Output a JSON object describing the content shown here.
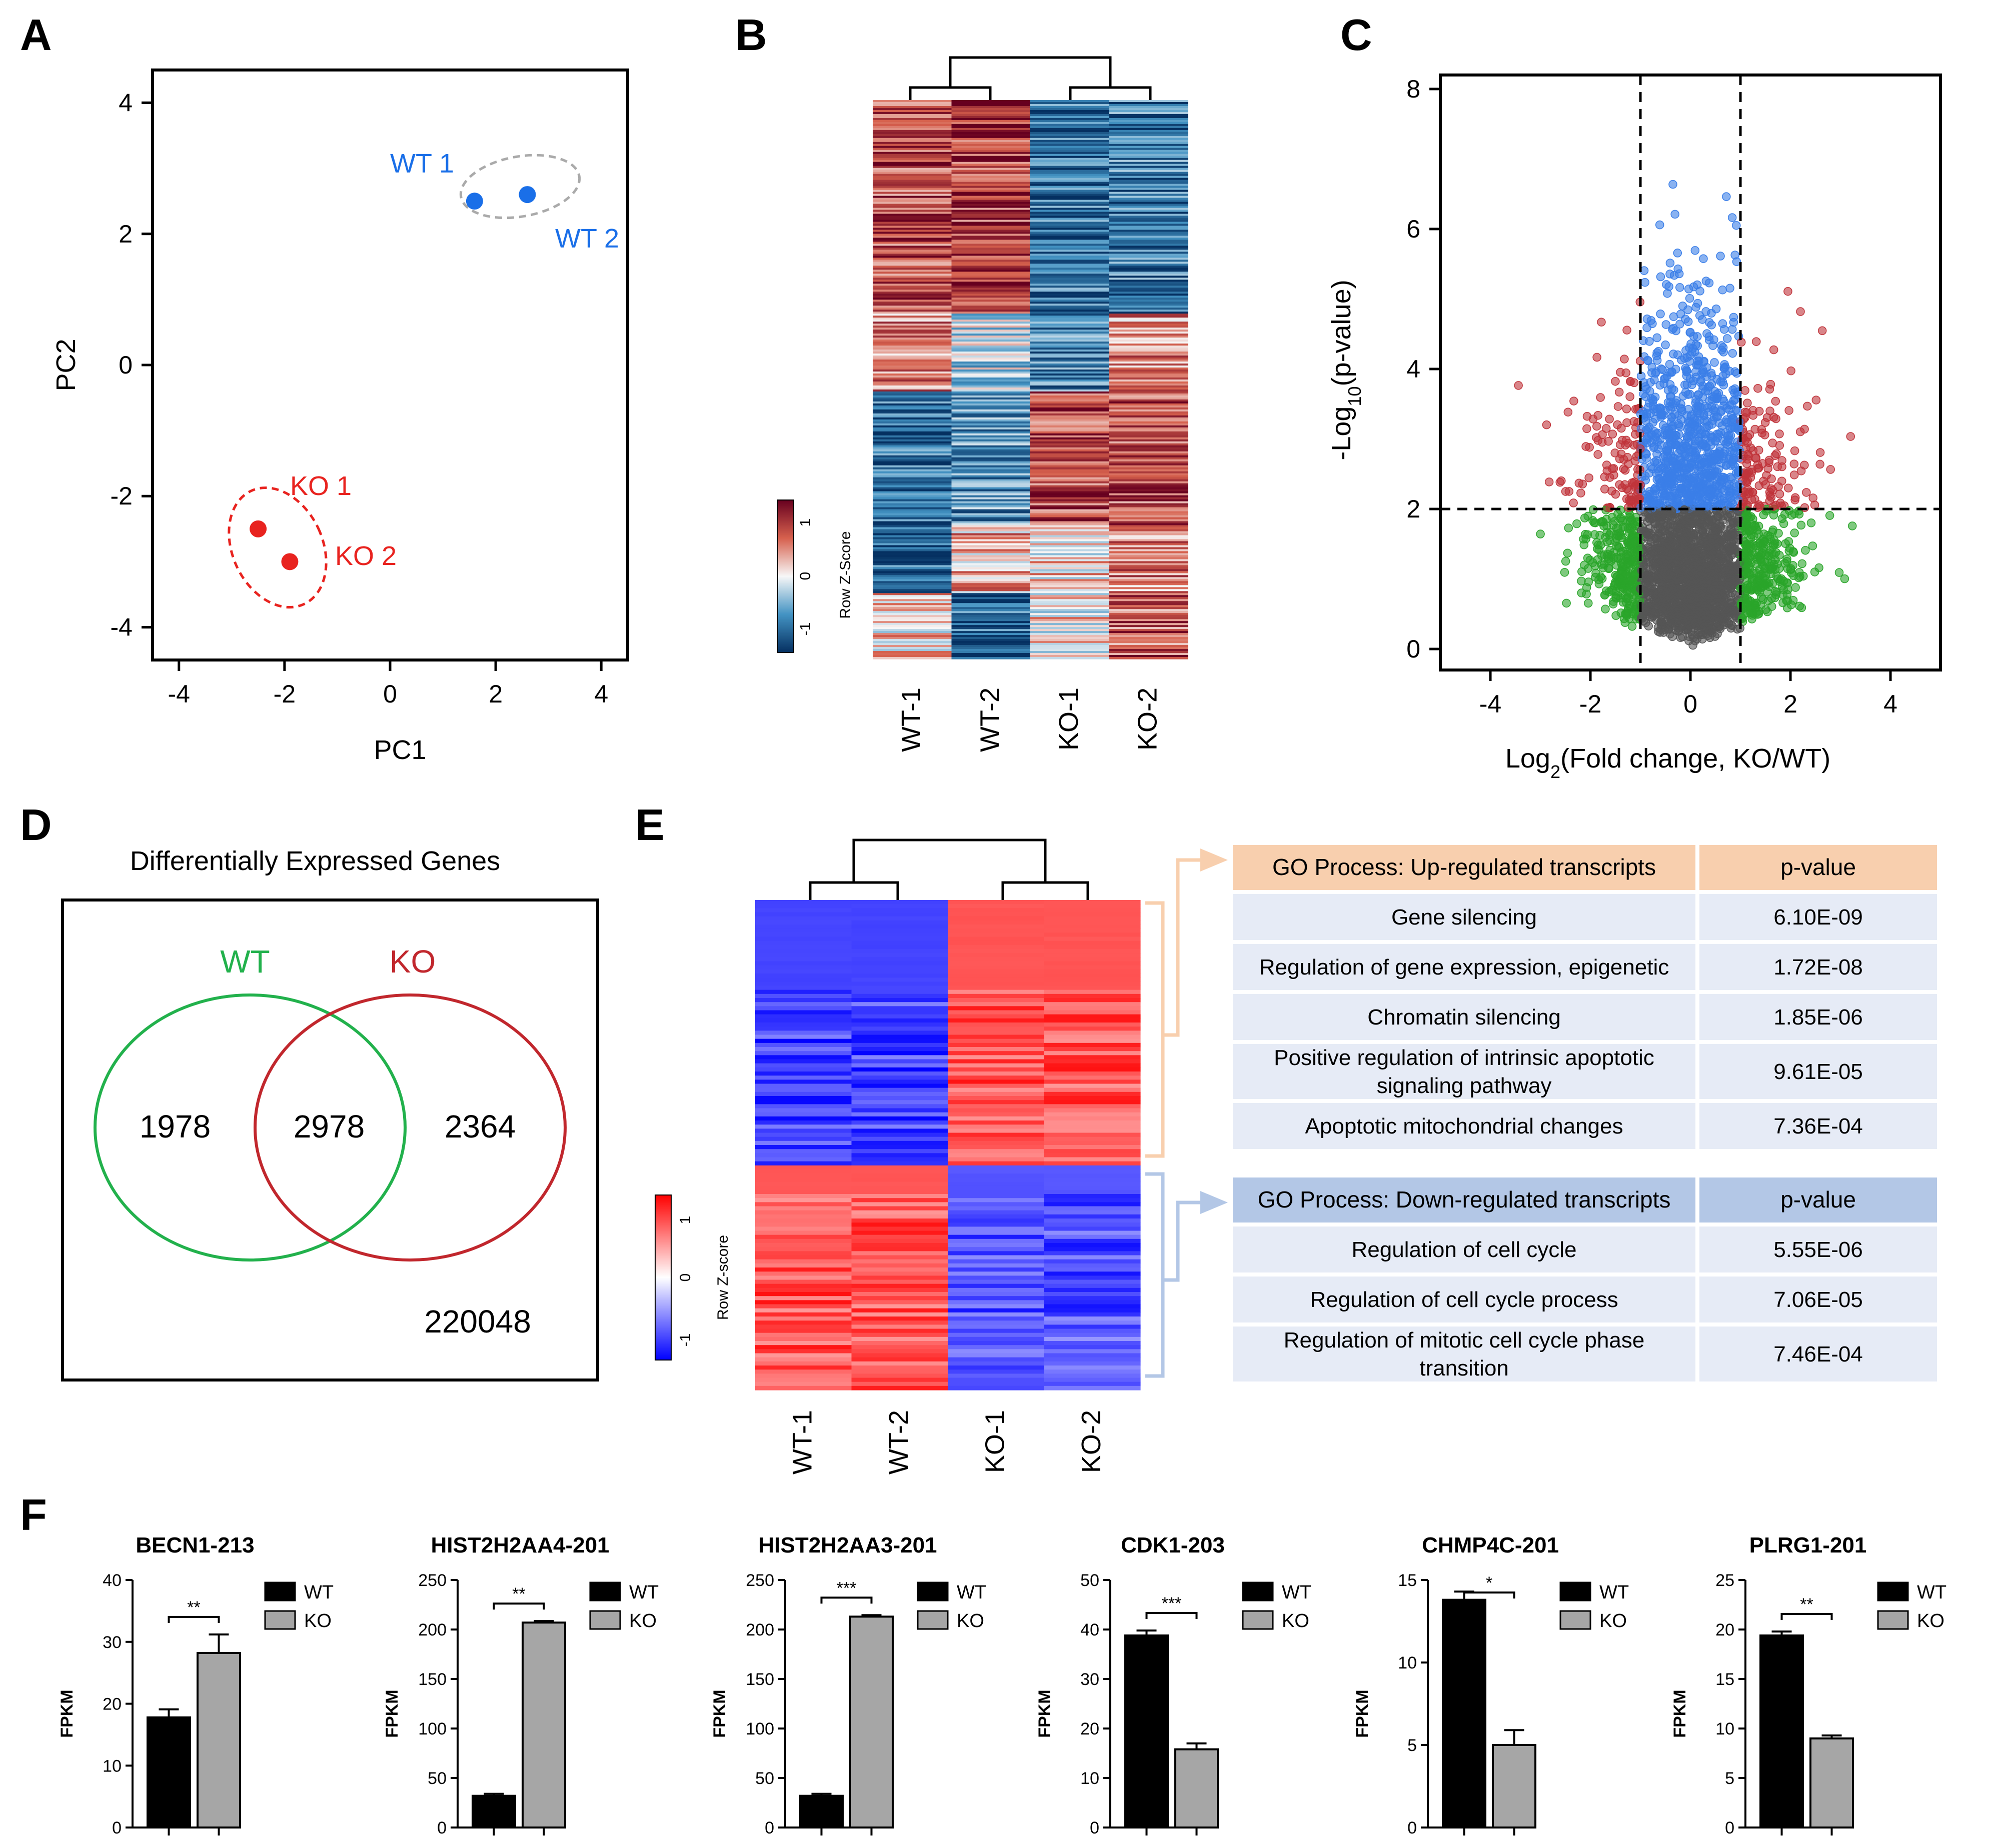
{
  "panels": {
    "A": {
      "letter": "A"
    },
    "B": {
      "letter": "B"
    },
    "C": {
      "letter": "C"
    },
    "D": {
      "letter": "D"
    },
    "E": {
      "letter": "E"
    },
    "F": {
      "letter": "F"
    }
  },
  "colors": {
    "wt_blue": "#1a6fe8",
    "ko_red": "#e8231f",
    "venn_green": "#22b14c",
    "venn_red": "#c1272d",
    "volcano_red": "#c0343b",
    "volcano_blue": "#3a7ee8",
    "volcano_green": "#2aa52a",
    "volcano_gray": "#555555",
    "go_up_header": "#f8cfae",
    "go_down_header": "#b3c7e6",
    "go_row": "#e6ebf6"
  },
  "chart_data": [
    {
      "id": "A",
      "type": "scatter",
      "title": "",
      "xlabel": "PC1",
      "ylabel": "PC2",
      "xlim": [
        -4.5,
        4.5
      ],
      "ylim": [
        -4.5,
        4.5
      ],
      "xticks": [
        "-4",
        "-2",
        "0",
        "2",
        "4"
      ],
      "yticks": [
        "4",
        "2",
        "0",
        "-2",
        "-4"
      ],
      "series": [
        {
          "name": "WT",
          "points": [
            [
              1.6,
              2.5
            ],
            [
              2.6,
              2.6
            ]
          ],
          "labels": [
            "WT 1",
            "WT 2"
          ]
        },
        {
          "name": "KO",
          "points": [
            [
              -2.5,
              -2.5
            ],
            [
              -1.9,
              -3.0
            ]
          ],
          "labels": [
            "KO 1",
            "KO 2"
          ]
        }
      ]
    },
    {
      "id": "B",
      "type": "heatmap",
      "columns": [
        "WT-1",
        "WT-2",
        "KO-1",
        "KO-2"
      ],
      "legend_title": "Row Z-Score",
      "legend_ticks": [
        "1",
        "0",
        "-1"
      ]
    },
    {
      "id": "C",
      "type": "scatter",
      "subtype": "volcano",
      "xlabel_main": "Log",
      "xlabel_sub": "2",
      "xlabel_rest": "(Fold change, KO/WT)",
      "ylabel_pre": "-Log",
      "ylabel_sub": "10",
      "ylabel_rest": "(p-value)",
      "xlim": [
        -5,
        5
      ],
      "ylim": [
        -0.3,
        8.2
      ],
      "xticks": [
        "-4",
        "-2",
        "0",
        "2",
        "4"
      ],
      "yticks": [
        "8",
        "6",
        "4",
        "2",
        "0"
      ],
      "thresholds": {
        "log2fc": 1,
        "neg_log10_p": 2
      }
    },
    {
      "id": "D",
      "type": "venn",
      "title": "Differentially Expressed Genes",
      "sets": [
        {
          "name": "WT",
          "only": "1978"
        },
        {
          "name": "KO",
          "only": "2364"
        }
      ],
      "intersection": "2978",
      "outside": "220048"
    },
    {
      "id": "E",
      "type": "heatmap",
      "columns": [
        "WT-1",
        "WT-2",
        "KO-1",
        "KO-2"
      ],
      "legend_title": "Row Z-score",
      "legend_ticks": [
        "1",
        "0",
        "-1"
      ],
      "go_up": {
        "header": "GO Process: Up-regulated transcripts",
        "pheader": "p-value",
        "rows": [
          {
            "term": [
              "Gene silencing"
            ],
            "p": "6.10E-09"
          },
          {
            "term": [
              "Regulation of gene expression, epigenetic"
            ],
            "p": "1.72E-08"
          },
          {
            "term": [
              "Chromatin silencing"
            ],
            "p": "1.85E-06"
          },
          {
            "term": [
              "Positive regulation of intrinsic apoptotic",
              "signaling pathway"
            ],
            "p": "9.61E-05"
          },
          {
            "term": [
              "Apoptotic mitochondrial changes"
            ],
            "p": "7.36E-04"
          }
        ]
      },
      "go_down": {
        "header": "GO Process: Down-regulated transcripts",
        "pheader": "p-value",
        "rows": [
          {
            "term": [
              "Regulation of cell cycle"
            ],
            "p": "5.55E-06"
          },
          {
            "term": [
              "Regulation of cell cycle process"
            ],
            "p": "7.06E-05"
          },
          {
            "term": [
              "Regulation of mitotic cell cycle phase",
              "transition"
            ],
            "p": "7.46E-04"
          }
        ]
      }
    },
    {
      "id": "F",
      "type": "bar",
      "ylabel": "FPKM",
      "legend": [
        "WT",
        "KO"
      ],
      "charts": [
        {
          "title": "BECN1-213",
          "ylim": [
            0,
            40
          ],
          "yticks": [
            "0",
            "10",
            "20",
            "30",
            "40"
          ],
          "tickvals": [
            0,
            10,
            20,
            30,
            40
          ],
          "values": [
            17.8,
            28.2
          ],
          "errors": [
            1.3,
            3.0
          ],
          "sig": "**"
        },
        {
          "title": "HIST2H2AA4-201",
          "ylim": [
            0,
            250
          ],
          "yticks": [
            "0",
            "50",
            "100",
            "150",
            "200",
            "250"
          ],
          "tickvals": [
            0,
            50,
            100,
            150,
            200,
            250
          ],
          "values": [
            32,
            207
          ],
          "errors": [
            2,
            1.5
          ],
          "sig": "**"
        },
        {
          "title": "HIST2H2AA3-201",
          "ylim": [
            0,
            250
          ],
          "yticks": [
            "0",
            "50",
            "100",
            "150",
            "200",
            "250"
          ],
          "tickvals": [
            0,
            50,
            100,
            150,
            200,
            250
          ],
          "values": [
            32,
            213
          ],
          "errors": [
            2,
            1.5
          ],
          "sig": "***"
        },
        {
          "title": "CDK1-203",
          "ylim": [
            0,
            50
          ],
          "yticks": [
            "0",
            "10",
            "20",
            "30",
            "40",
            "50"
          ],
          "tickvals": [
            0,
            10,
            20,
            30,
            40,
            50
          ],
          "values": [
            38.8,
            15.8
          ],
          "errors": [
            1.0,
            1.2
          ],
          "sig": "***"
        },
        {
          "title": "CHMP4C-201",
          "ylim": [
            0,
            15
          ],
          "yticks": [
            "0",
            "5",
            "10",
            "15"
          ],
          "tickvals": [
            0,
            5,
            10,
            15
          ],
          "values": [
            13.8,
            5.0
          ],
          "errors": [
            0.5,
            0.9
          ],
          "sig": "*"
        },
        {
          "title": "PLRG1-201",
          "ylim": [
            0,
            25
          ],
          "yticks": [
            "0",
            "5",
            "10",
            "15",
            "20",
            "25"
          ],
          "tickvals": [
            0,
            5,
            10,
            15,
            20,
            25
          ],
          "values": [
            19.4,
            9.0
          ],
          "errors": [
            0.4,
            0.3
          ],
          "sig": "**"
        }
      ]
    }
  ]
}
